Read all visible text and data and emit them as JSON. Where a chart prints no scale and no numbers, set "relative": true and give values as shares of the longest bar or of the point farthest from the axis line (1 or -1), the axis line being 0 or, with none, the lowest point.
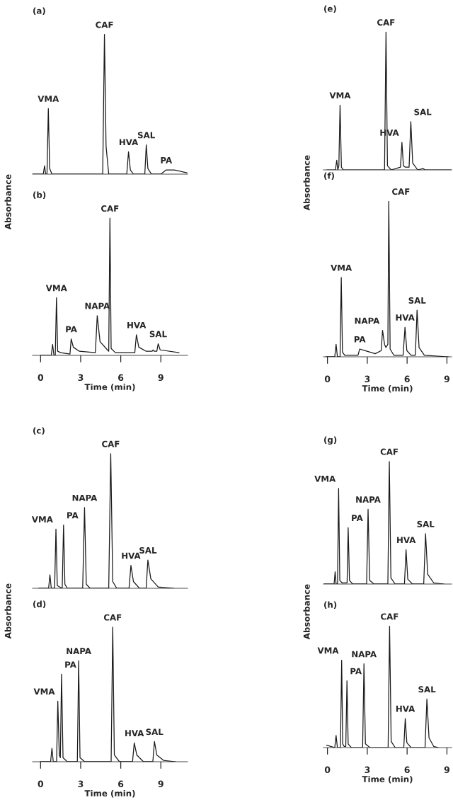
{
  "chart_data": [
    {
      "type": "line",
      "title": "(a)",
      "relative": true,
      "xlim": [
        -0.6,
        11
      ],
      "xticks": [
        0,
        3,
        6,
        9
      ],
      "tick_labels": false,
      "x": [
        -0.6,
        0.2,
        0.3,
        0.38,
        0.48,
        0.58,
        0.68,
        0.85,
        4.65,
        4.78,
        4.9,
        5.1,
        6.45,
        6.58,
        6.72,
        6.95,
        7.8,
        7.91,
        8.03,
        8.3,
        9.0,
        9.4,
        10.0,
        10.96
      ],
      "series": [
        {
          "color": "#1a1a1a",
          "values": [
            0,
            0,
            0.06,
            0,
            0,
            0.47,
            0.04,
            0,
            0,
            1,
            0.2,
            0,
            0,
            0.16,
            0.03,
            0,
            0,
            0.21,
            0.04,
            0,
            0,
            0.03,
            0.03,
            0.01
          ]
        }
      ],
      "annotations": [
        {
          "text": "VMA",
          "x": 0.58,
          "y": 0.47
        },
        {
          "text": "CAF",
          "x": 4.78,
          "y": 1
        },
        {
          "text": "HVA",
          "x": 6.58,
          "y": 0.16
        },
        {
          "text": "SAL",
          "x": 7.91,
          "y": 0.21
        },
        {
          "text": "PA",
          "x": 9.4,
          "y": 0.03
        }
      ]
    },
    {
      "type": "line",
      "title": "(b)",
      "relative": true,
      "xlim": [
        -0.6,
        11
      ],
      "xticks": [
        0,
        3,
        6,
        9
      ],
      "tick_labels": "x",
      "xlabel": "Time (min)",
      "ylabel": "Absorbance",
      "x": [
        0,
        0.8,
        0.9,
        1.0,
        1.1,
        1.19,
        1.28,
        1.5,
        2.2,
        2.29,
        2.45,
        2.9,
        4.1,
        4.24,
        4.45,
        5.0,
        5.1,
        5.19,
        5.28,
        5.6,
        7.05,
        7.17,
        7.35,
        7.9,
        8.35,
        8.42,
        8.5,
        8.7,
        8.8,
        8.95,
        10.36
      ],
      "series": [
        {
          "color": "#1a1a1a",
          "values": [
            0,
            0,
            0.08,
            0,
            0,
            0.42,
            0.03,
            0.02,
            0.01,
            0.12,
            0.06,
            0.03,
            0.02,
            0.29,
            0.1,
            0.04,
            0.03,
            1,
            0.05,
            0.02,
            0.02,
            0.15,
            0.06,
            0.03,
            0.03,
            0.04,
            0.03,
            0.03,
            0.085,
            0.04,
            0.02
          ]
        }
      ],
      "annotations": [
        {
          "text": "VMA",
          "x": 1.19,
          "y": 0.42
        },
        {
          "text": "PA",
          "x": 2.29,
          "y": 0.12
        },
        {
          "text": "NAPA",
          "x": 4.24,
          "y": 0.29
        },
        {
          "text": "CAF",
          "x": 5.19,
          "y": 1
        },
        {
          "text": "HVA",
          "x": 7.17,
          "y": 0.15
        },
        {
          "text": "SAL",
          "x": 8.8,
          "y": 0.085
        }
      ]
    },
    {
      "type": "line",
      "title": "(c)",
      "relative": true,
      "xlim": [
        -0.6,
        11
      ],
      "xticks": [
        0,
        3,
        6,
        9
      ],
      "tick_labels": false,
      "x": [
        -0.15,
        0.6,
        0.7,
        0.8,
        1.05,
        1.15,
        1.25,
        1.62,
        1.72,
        1.82,
        2.0,
        3.15,
        3.29,
        3.42,
        3.7,
        5.1,
        5.25,
        5.4,
        5.7,
        6.62,
        6.76,
        6.95,
        7.4,
        7.9,
        8.03,
        8.25,
        8.8,
        9.98
      ],
      "series": [
        {
          "color": "#1a1a1a",
          "values": [
            0,
            0,
            0.1,
            0,
            0,
            0.44,
            0.02,
            0,
            0.47,
            0.03,
            0,
            0,
            0.6,
            0.03,
            0,
            0,
            1,
            0.05,
            0,
            0,
            0.17,
            0.05,
            0,
            0,
            0.21,
            0.07,
            0.01,
            0
          ]
        }
      ],
      "annotations": [
        {
          "text": "VMA",
          "x": 1.15,
          "y": 0.44
        },
        {
          "text": "PA",
          "x": 1.72,
          "y": 0.47
        },
        {
          "text": "NAPA",
          "x": 3.29,
          "y": 0.6
        },
        {
          "text": "CAF",
          "x": 5.25,
          "y": 1
        },
        {
          "text": "HVA",
          "x": 6.76,
          "y": 0.17
        },
        {
          "text": "SAL",
          "x": 8.03,
          "y": 0.21
        }
      ]
    },
    {
      "type": "line",
      "title": "(d)",
      "relative": true,
      "xlim": [
        -0.6,
        11
      ],
      "xticks": [
        0,
        3,
        6,
        9
      ],
      "tick_labels": "x",
      "xlabel": "Time (min)",
      "ylabel": "Absorbance",
      "x": [
        0,
        0.75,
        0.85,
        0.95,
        1.2,
        1.29,
        1.4,
        1.48,
        1.57,
        1.68,
        2.0,
        2.75,
        2.85,
        2.95,
        3.3,
        5.28,
        5.4,
        5.52,
        5.9,
        6.88,
        7.01,
        7.2,
        7.7,
        8.4,
        8.52,
        8.7,
        9.2,
        10.1
      ],
      "series": [
        {
          "color": "#1a1a1a",
          "values": [
            0,
            0,
            0.1,
            0,
            0,
            0.45,
            0.05,
            0.03,
            0.65,
            0.03,
            0,
            0,
            0.75,
            0.03,
            0,
            0,
            1,
            0.05,
            0,
            0,
            0.14,
            0.05,
            0,
            0,
            0.15,
            0.05,
            0.01,
            0
          ]
        }
      ],
      "annotations": [
        {
          "text": "VMA",
          "x": 1.29,
          "y": 0.45
        },
        {
          "text": "PA",
          "x": 1.57,
          "y": 0.65
        },
        {
          "text": "NAPA",
          "x": 2.85,
          "y": 0.75
        },
        {
          "text": "CAF",
          "x": 5.4,
          "y": 1
        },
        {
          "text": "HVA",
          "x": 7.01,
          "y": 0.14
        },
        {
          "text": "SAL",
          "x": 8.52,
          "y": 0.15
        }
      ]
    },
    {
      "type": "line",
      "title": "(e)",
      "relative": true,
      "xlim": [
        -0.3,
        9.35
      ],
      "xticks": [
        0,
        3,
        6,
        9
      ],
      "tick_labels": false,
      "x": [
        -0.03,
        0.6,
        0.7,
        0.78,
        0.86,
        0.95,
        1.05,
        1.2,
        4.3,
        4.41,
        4.52,
        4.8,
        5.5,
        5.61,
        5.72,
        5.85,
        6.15,
        6.28,
        6.42,
        6.8,
        7.2,
        7.35,
        8.2,
        9.32
      ],
      "series": [
        {
          "color": "#1a1a1a",
          "values": [
            0,
            0,
            0.07,
            0,
            0.03,
            0.47,
            0.02,
            0,
            0,
            1,
            0.03,
            0,
            0.02,
            0.2,
            0.03,
            0.02,
            0.02,
            0.35,
            0.05,
            0,
            0.01,
            0,
            0,
            0
          ]
        }
      ],
      "annotations": [
        {
          "text": "VMA",
          "x": 0.95,
          "y": 0.47
        },
        {
          "text": "CAF",
          "x": 4.41,
          "y": 1
        },
        {
          "text": "HVA",
          "x": 5.61,
          "y": 0.2
        },
        {
          "text": "SAL",
          "x": 6.28,
          "y": 0.35
        }
      ]
    },
    {
      "type": "line",
      "title": "(f)",
      "relative": true,
      "xlim": [
        -0.3,
        9.35
      ],
      "xticks": [
        0,
        3,
        6,
        9
      ],
      "tick_labels": "x",
      "xlabel": "Time (min)",
      "ylabel": "Absorbance",
      "x": [
        -0.1,
        0.55,
        0.65,
        0.75,
        0.95,
        1.04,
        1.13,
        1.3,
        2.3,
        2.43,
        2.8,
        3.6,
        4.05,
        4.15,
        4.3,
        4.4,
        4.55,
        4.62,
        4.72,
        5.0,
        5.7,
        5.84,
        5.98,
        6.3,
        6.62,
        6.75,
        6.9,
        7.3,
        9.12
      ],
      "series": [
        {
          "color": "#1a1a1a",
          "values": [
            0,
            0,
            0.08,
            0,
            0,
            0.51,
            0.03,
            0.01,
            0.01,
            0.05,
            0.04,
            0.02,
            0.04,
            0.17,
            0.08,
            0.06,
            0.08,
            1,
            0.05,
            0.01,
            0.01,
            0.19,
            0.04,
            0.01,
            0.01,
            0.3,
            0.06,
            0.01,
            0
          ]
        }
      ],
      "annotations": [
        {
          "text": "VMA",
          "x": 1.04,
          "y": 0.51
        },
        {
          "text": "PA",
          "x": 2.43,
          "y": 0.05
        },
        {
          "text": "NAPA",
          "x": 4.15,
          "y": 0.17
        },
        {
          "text": "CAF",
          "x": 4.62,
          "y": 1
        },
        {
          "text": "HVA",
          "x": 5.84,
          "y": 0.19
        },
        {
          "text": "SAL",
          "x": 6.75,
          "y": 0.3
        }
      ]
    },
    {
      "type": "line",
      "title": "(g)",
      "relative": true,
      "xlim": [
        -0.3,
        9.35
      ],
      "xticks": [
        0,
        3,
        6,
        9
      ],
      "tick_labels": false,
      "x": [
        -0.25,
        0.5,
        0.58,
        0.65,
        0.76,
        0.84,
        0.93,
        1.1,
        1.48,
        1.56,
        1.66,
        1.9,
        2.95,
        3.06,
        3.18,
        3.5,
        4.55,
        4.66,
        4.78,
        5.1,
        5.8,
        5.92,
        6.05,
        6.4,
        7.25,
        7.39,
        7.55,
        8.0,
        8.78
      ],
      "series": [
        {
          "color": "#1a1a1a",
          "values": [
            0,
            0,
            0.1,
            0,
            0,
            0.78,
            0.03,
            0.01,
            0.01,
            0.46,
            0.03,
            0,
            0,
            0.61,
            0.03,
            0,
            0,
            1,
            0.05,
            0,
            0,
            0.28,
            0.04,
            0,
            0,
            0.41,
            0.08,
            0.01,
            0
          ]
        }
      ],
      "annotations": [
        {
          "text": "VMA",
          "x": 0.84,
          "y": 0.78
        },
        {
          "text": "PA",
          "x": 1.56,
          "y": 0.46
        },
        {
          "text": "NAPA",
          "x": 3.06,
          "y": 0.61
        },
        {
          "text": "CAF",
          "x": 4.66,
          "y": 1
        },
        {
          "text": "HVA",
          "x": 5.92,
          "y": 0.28
        },
        {
          "text": "SAL",
          "x": 7.39,
          "y": 0.41
        }
      ]
    },
    {
      "type": "line",
      "title": "(h)",
      "relative": true,
      "xlim": [
        -0.3,
        9.35
      ],
      "xticks": [
        0,
        3,
        6,
        9
      ],
      "tick_labels": "x",
      "xlabel": "Time (min)",
      "ylabel": "Absorbance",
      "x": [
        -0.06,
        0.55,
        0.65,
        0.75,
        0.98,
        1.07,
        1.15,
        1.25,
        1.38,
        1.47,
        1.56,
        1.8,
        2.65,
        2.75,
        2.86,
        3.2,
        4.57,
        4.68,
        4.8,
        5.1,
        5.75,
        5.86,
        5.98,
        6.3,
        7.35,
        7.49,
        7.65,
        8.0,
        8.35
      ],
      "series": [
        {
          "color": "#1a1a1a",
          "values": [
            0.02,
            0,
            0.1,
            0,
            0,
            0.72,
            0.03,
            0.01,
            0.01,
            0.55,
            0.03,
            0,
            0,
            0.69,
            0.03,
            0,
            0,
            1,
            0.05,
            0,
            0,
            0.24,
            0.04,
            0,
            0,
            0.4,
            0.08,
            0.01,
            0
          ]
        }
      ],
      "annotations": [
        {
          "text": "VMA",
          "x": 1.07,
          "y": 0.72
        },
        {
          "text": "PA",
          "x": 1.47,
          "y": 0.55
        },
        {
          "text": "NAPA",
          "x": 2.75,
          "y": 0.69
        },
        {
          "text": "CAF",
          "x": 4.68,
          "y": 1
        },
        {
          "text": "HVA",
          "x": 5.86,
          "y": 0.24
        },
        {
          "text": "SAL",
          "x": 7.49,
          "y": 0.4
        }
      ]
    }
  ]
}
